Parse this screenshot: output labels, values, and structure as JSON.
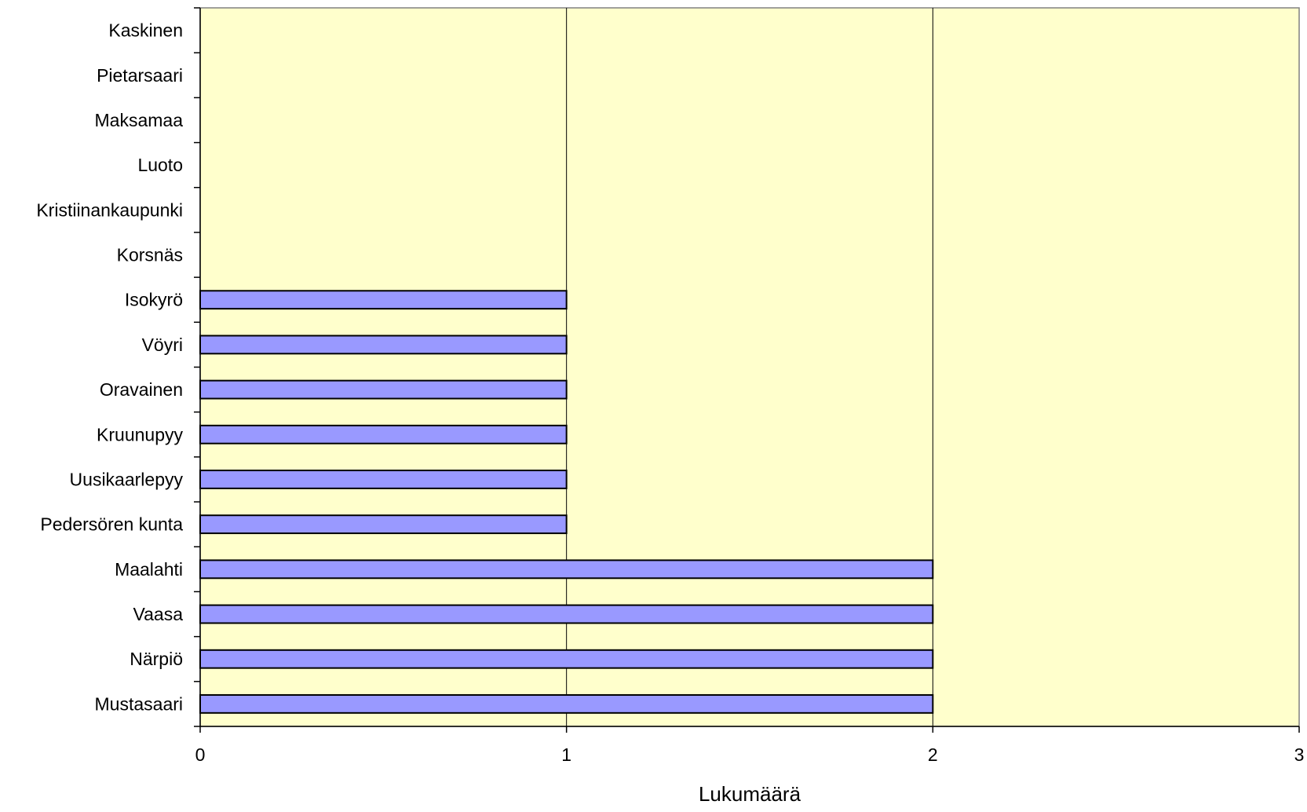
{
  "chart_data": {
    "type": "bar",
    "orientation": "horizontal",
    "categories": [
      "Kaskinen",
      "Pietarsaari",
      "Maksamaa",
      "Luoto",
      "Kristiinankaupunki",
      "Korsnäs",
      "Isokyrö",
      "Vöyri",
      "Oravainen",
      "Kruunupyy",
      "Uusikaarlepyy",
      "Pedersören kunta",
      "Maalahti",
      "Vaasa",
      "Närpiö",
      "Mustasaari"
    ],
    "values": [
      0,
      0,
      0,
      0,
      0,
      0,
      1,
      1,
      1,
      1,
      1,
      1,
      2,
      2,
      2,
      2
    ],
    "title": "",
    "xlabel": "Lukumäärä",
    "ylabel": "",
    "xlim": [
      0,
      3
    ],
    "xticks": [
      "0",
      "1",
      "2",
      "3"
    ],
    "grid": "vertical",
    "legend": "none",
    "colors": {
      "bar_fill": "#9999ff",
      "bar_stroke": "#000000",
      "plot_background": "#ffffcc",
      "gridline": "#000000"
    }
  }
}
